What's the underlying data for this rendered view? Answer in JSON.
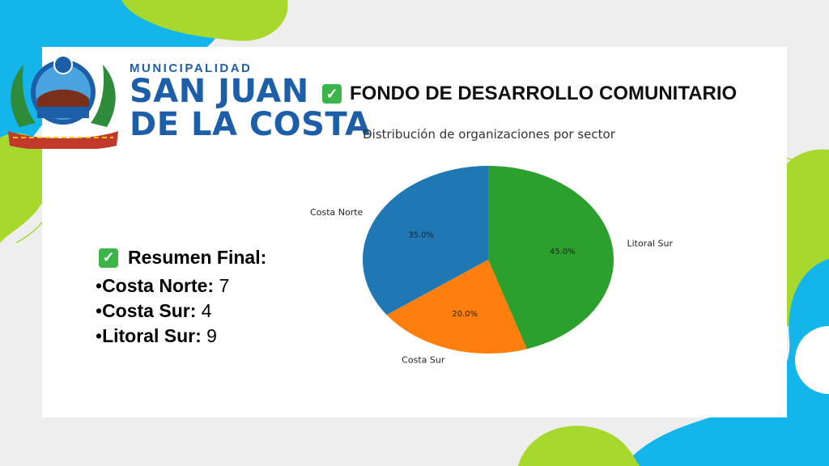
{
  "brand": {
    "subtitle": "MUNICIPALIDAD",
    "name_line1": "SAN JUAN",
    "name_line2": "DE LA COSTA"
  },
  "header": {
    "title": "FONDO DE DESARROLLO COMUNITARIO",
    "check_icon": "check-box-icon"
  },
  "summary": {
    "heading": "Resumen Final:",
    "items": [
      {
        "bullet": "•",
        "label": "Costa Norte:",
        "value": "7"
      },
      {
        "bullet": "•",
        "label": "Costa Sur:",
        "value": "4"
      },
      {
        "bullet": "•",
        "label": "Litoral Sur:",
        "value": "9"
      }
    ]
  },
  "colors": {
    "brand_blue": "#1d5ea9",
    "accent_green": "#a6d82e",
    "accent_cyan": "#13b5ea",
    "check_green": "#3bb54a"
  },
  "chart_data": {
    "type": "pie",
    "title": "Distribución de organizaciones por sector",
    "slices": [
      {
        "label": "Litoral Sur",
        "value": 45.0,
        "pct_label": "45.0%",
        "color": "#2ca02c"
      },
      {
        "label": "Costa Sur",
        "value": 20.0,
        "pct_label": "20.0%",
        "color": "#ff7f0e"
      },
      {
        "label": "Costa Norte",
        "value": 35.0,
        "pct_label": "35.0%",
        "color": "#1f77b4"
      }
    ],
    "start": "top",
    "direction": "clockwise"
  }
}
